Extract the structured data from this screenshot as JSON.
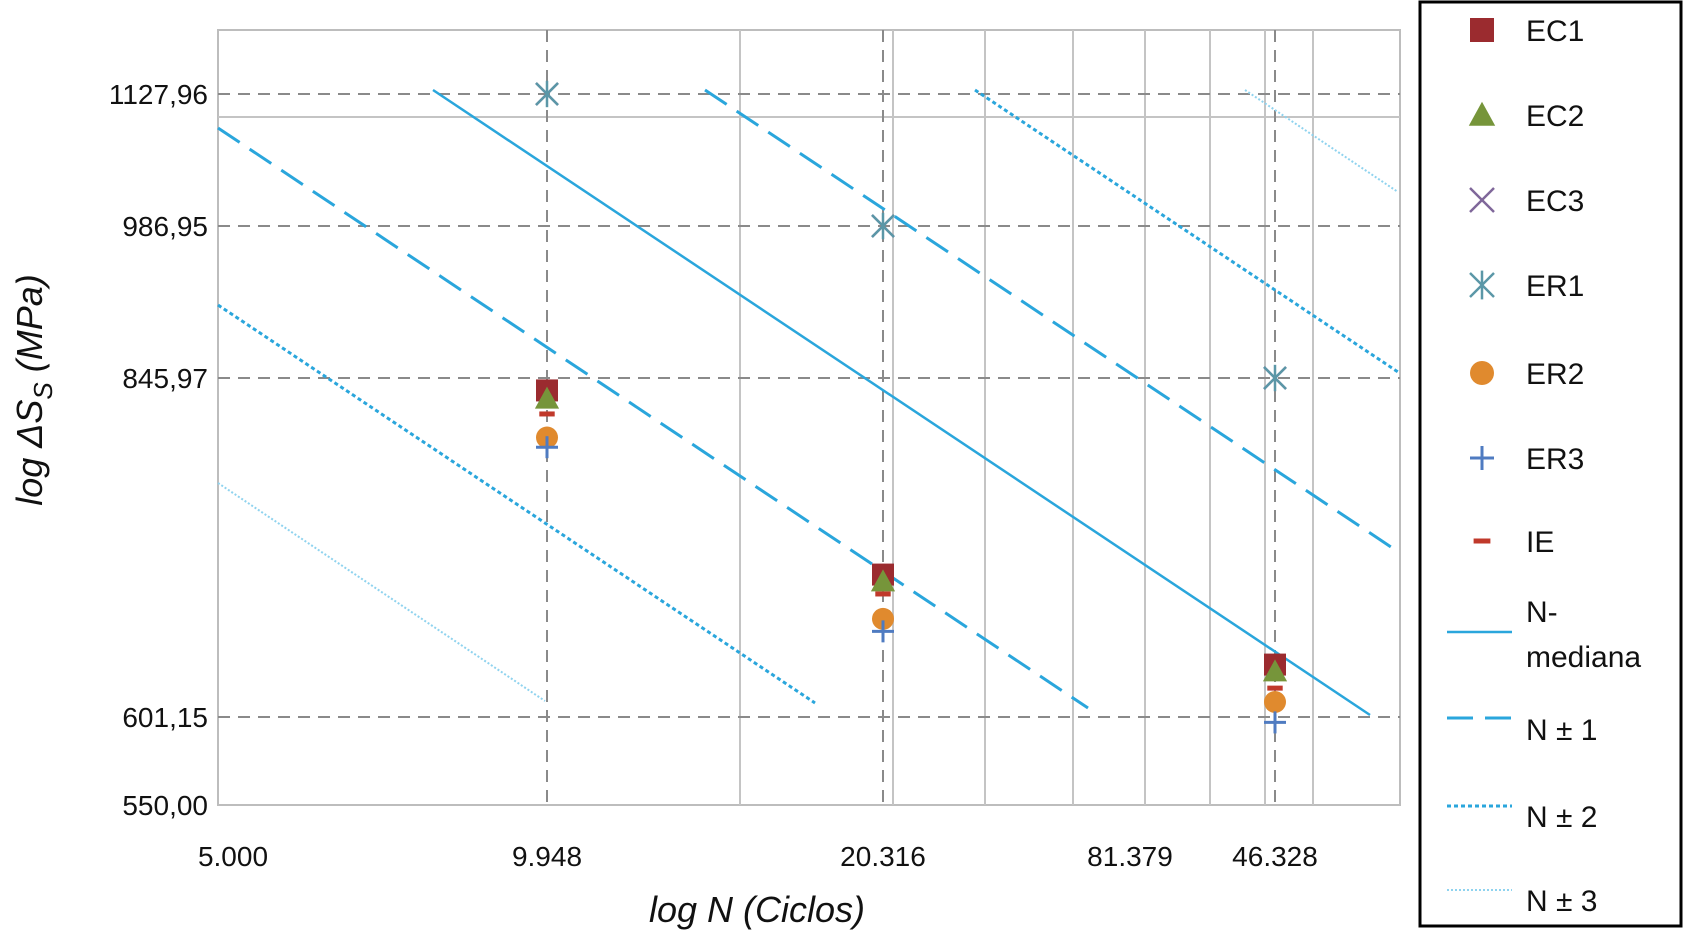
{
  "chart_data": {
    "type": "scatter",
    "title": "",
    "xlabel": {
      "prefix": "log N (",
      "main": "Ciclos",
      "suffix": ")"
    },
    "ylabel": {
      "prefix": "log ΔS",
      "sub": "S",
      "mid": " (",
      "main": "MPa",
      "suffix": ")"
    },
    "x_ticks": [
      "5.000",
      "9.948",
      "20.316",
      "81.379",
      "46.328"
    ],
    "y_ticks": [
      "1127,96",
      "986,95",
      "845,97",
      "601,15",
      "550,00"
    ],
    "grid": true,
    "legend_position": "right",
    "series": [
      {
        "name": "EC1",
        "marker": "square",
        "color": "#9b2b2f",
        "points": [
          {
            "x": "9.948",
            "y": 837.0
          },
          {
            "x": "20.316",
            "y": 704.0
          },
          {
            "x": "46.328",
            "y": 639.0
          }
        ]
      },
      {
        "name": "EC2",
        "marker": "triangle",
        "color": "#76953a",
        "points": [
          {
            "x": "9.948",
            "y": 831.0
          },
          {
            "x": "20.316",
            "y": 699.0
          },
          {
            "x": "46.328",
            "y": 634.0
          }
        ]
      },
      {
        "name": "EC3",
        "marker": "x",
        "color": "#7f679a",
        "points": [
          {
            "x": "9.948",
            "y": 1127.96
          },
          {
            "x": "20.316",
            "y": 986.95
          },
          {
            "x": "46.328",
            "y": 845.97
          }
        ]
      },
      {
        "name": "ER1",
        "marker": "asterisk",
        "color": "#5b97a7",
        "points": [
          {
            "x": "9.948",
            "y": 1127.96
          },
          {
            "x": "20.316",
            "y": 986.95
          },
          {
            "x": "46.328",
            "y": 845.97
          }
        ]
      },
      {
        "name": "ER2",
        "marker": "circle",
        "color": "#e08a2e",
        "points": [
          {
            "x": "9.948",
            "y": 803.0
          },
          {
            "x": "20.316",
            "y": 672.0
          },
          {
            "x": "46.328",
            "y": 612.0
          }
        ]
      },
      {
        "name": "ER3",
        "marker": "plus",
        "color": "#4f7bc1",
        "points": [
          {
            "x": "9.948",
            "y": 796.0
          },
          {
            "x": "20.316",
            "y": 663.0
          },
          {
            "x": "46.328",
            "y": 598.0
          }
        ]
      },
      {
        "name": "IE",
        "marker": "dash",
        "color": "#c0392b",
        "points": [
          {
            "x": "9.948",
            "y": 820.0
          },
          {
            "x": "20.316",
            "y": 690.0
          },
          {
            "x": "46.328",
            "y": 622.0
          }
        ]
      }
    ],
    "lines": [
      {
        "name": "N-mediana",
        "legend_lines": [
          "N-",
          "mediana"
        ],
        "style": "solid",
        "color": "#2aa6dc"
      },
      {
        "name": "N ± 1",
        "style": "dash",
        "color": "#2aa6dc"
      },
      {
        "name": "N ± 2",
        "style": "dot",
        "color": "#2aa6dc"
      },
      {
        "name": "N ± 3",
        "style": "fine",
        "color": "#8fd3ef"
      }
    ]
  }
}
